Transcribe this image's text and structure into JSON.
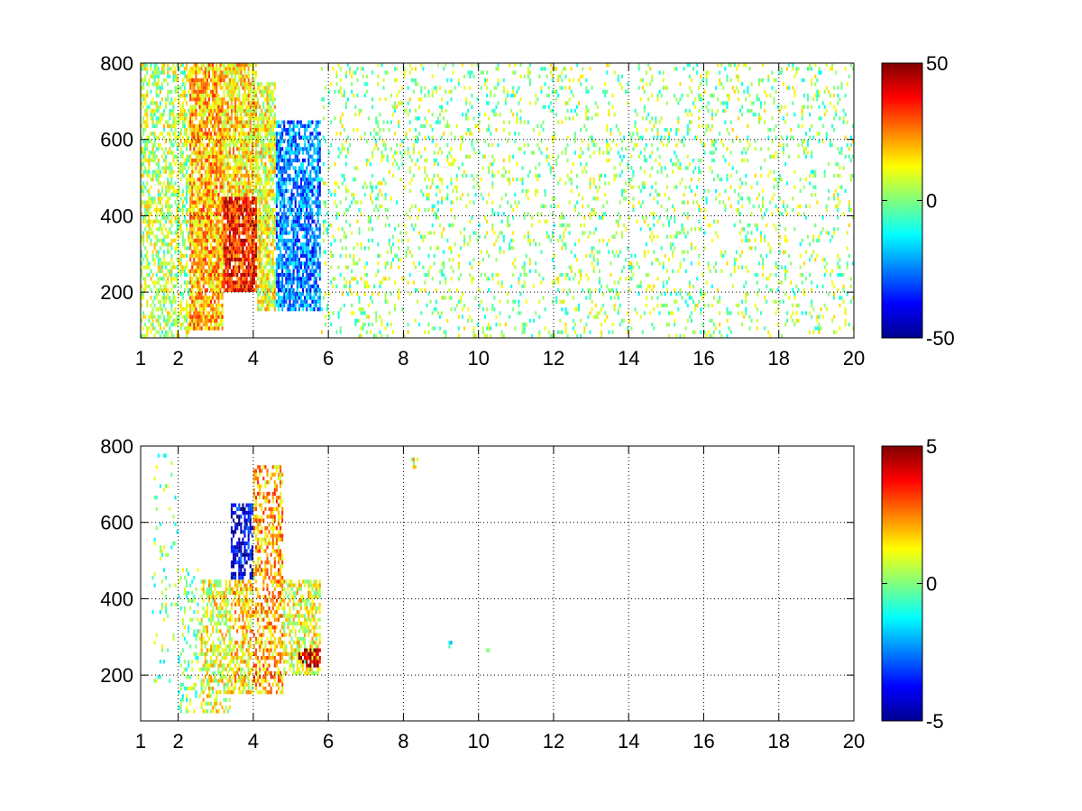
{
  "chart_data": [
    {
      "type": "heatmap",
      "title": "",
      "xlabel": "",
      "ylabel": "",
      "xlim": [
        1,
        20
      ],
      "ylim": [
        80,
        800
      ],
      "x_ticks": [
        1,
        2,
        4,
        6,
        8,
        10,
        12,
        14,
        16,
        18,
        20
      ],
      "x_tick_labels": [
        "1",
        "2",
        "4",
        "6",
        "8",
        "10",
        "12",
        "14",
        "16",
        "18",
        "20"
      ],
      "y_ticks": [
        200,
        400,
        600,
        800
      ],
      "y_tick_labels": [
        "200",
        "400",
        "600",
        "800"
      ],
      "grid": true,
      "colormap": "jet",
      "clim": [
        -50,
        50
      ],
      "colorbar_ticks": [
        50,
        0,
        -50
      ],
      "colorbar_tick_labels": [
        "50",
        "0",
        "-50"
      ],
      "regions": [
        {
          "x": [
            1.0,
            2.3
          ],
          "y": [
            80,
            800
          ],
          "value": 5,
          "density": 0.5
        },
        {
          "x": [
            2.3,
            3.2
          ],
          "y": [
            100,
            800
          ],
          "value": 20,
          "density": 0.85
        },
        {
          "x": [
            3.2,
            4.1
          ],
          "y": [
            200,
            450
          ],
          "value": 35,
          "density": 0.9
        },
        {
          "x": [
            3.2,
            4.1
          ],
          "y": [
            450,
            800
          ],
          "value": 15,
          "density": 0.8
        },
        {
          "x": [
            4.1,
            4.6
          ],
          "y": [
            150,
            750
          ],
          "value": 10,
          "density": 0.8
        },
        {
          "x": [
            4.6,
            5.8
          ],
          "y": [
            150,
            650
          ],
          "value": -25,
          "density": 0.75
        },
        {
          "x": [
            5.8,
            20.0
          ],
          "y": [
            80,
            800
          ],
          "value": 2,
          "density": 0.14
        }
      ]
    },
    {
      "type": "heatmap",
      "title": "",
      "xlabel": "",
      "ylabel": "",
      "xlim": [
        1,
        20
      ],
      "ylim": [
        80,
        800
      ],
      "x_ticks": [
        1,
        2,
        4,
        6,
        8,
        10,
        12,
        14,
        16,
        18,
        20
      ],
      "x_tick_labels": [
        "1",
        "2",
        "4",
        "6",
        "8",
        "10",
        "12",
        "14",
        "16",
        "18",
        "20"
      ],
      "y_ticks": [
        200,
        400,
        600,
        800
      ],
      "y_tick_labels": [
        "200",
        "400",
        "600",
        "800"
      ],
      "grid": true,
      "colormap": "jet",
      "clim": [
        -5,
        5
      ],
      "colorbar_ticks": [
        5,
        0,
        -5
      ],
      "colorbar_tick_labels": [
        "5",
        "0",
        "-5"
      ],
      "regions": [
        {
          "x": [
            1.3,
            2.0
          ],
          "y": [
            170,
            780
          ],
          "value": 0,
          "density": 0.08
        },
        {
          "x": [
            2.0,
            2.6
          ],
          "y": [
            100,
            480
          ],
          "value": 0,
          "density": 0.25
        },
        {
          "x": [
            2.6,
            3.4
          ],
          "y": [
            100,
            450
          ],
          "value": 1,
          "density": 0.55
        },
        {
          "x": [
            3.4,
            4.0
          ],
          "y": [
            450,
            650
          ],
          "value": -4,
          "density": 0.6
        },
        {
          "x": [
            3.4,
            4.0
          ],
          "y": [
            150,
            450
          ],
          "value": 1.5,
          "density": 0.6
        },
        {
          "x": [
            4.0,
            4.8
          ],
          "y": [
            150,
            750
          ],
          "value": 2,
          "density": 0.55
        },
        {
          "x": [
            4.8,
            5.8
          ],
          "y": [
            200,
            450
          ],
          "value": 1,
          "density": 0.6
        },
        {
          "x": [
            5.2,
            5.8
          ],
          "y": [
            220,
            270
          ],
          "value": 4.5,
          "density": 0.7
        },
        {
          "x": [
            8.2,
            8.4
          ],
          "y": [
            740,
            770
          ],
          "value": 1,
          "density": 0.6
        },
        {
          "x": [
            9.2,
            9.3
          ],
          "y": [
            270,
            300
          ],
          "value": -1,
          "density": 0.7
        },
        {
          "x": [
            10.2,
            10.3
          ],
          "y": [
            260,
            275
          ],
          "value": -1,
          "density": 0.7
        }
      ]
    }
  ]
}
